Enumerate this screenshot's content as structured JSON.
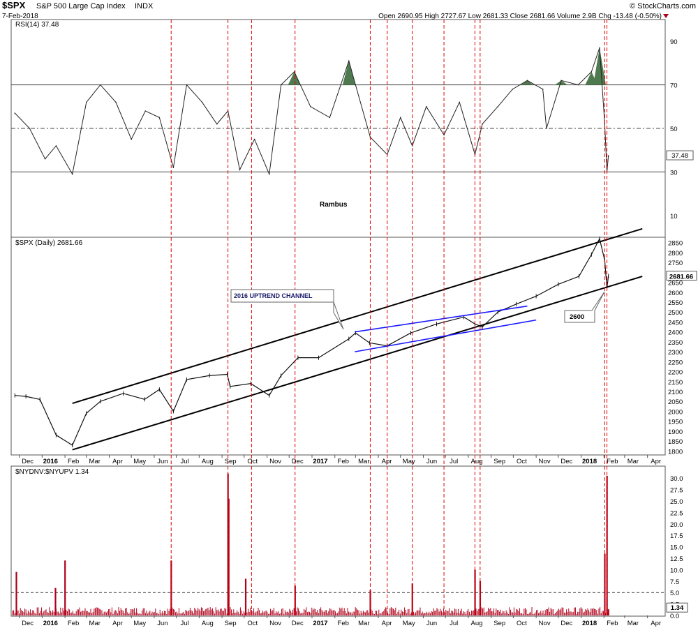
{
  "header": {
    "symbol": "$SPX",
    "name": "S&P 500 Large Cap Index",
    "exchange": "INDX",
    "date": "7-Feb-2018",
    "brand": "© StockCharts.com",
    "ohlc_text": "Open 2690.95  High 2727.67  Low 2681.33  Close 2681.66  Volume 2.9B  Chg -13.48 (-0.50%)"
  },
  "colors": {
    "rsi_fill": "#4f7a4f",
    "channel": "#000000",
    "wedge": "#1a1aff",
    "event_lines": "#e00000",
    "volume_bars": "#b0001a"
  },
  "chart_data": [
    {
      "type": "line",
      "title": "RSI(14) 37.48",
      "last_value": "37.48",
      "ylim": [
        0,
        100
      ],
      "yticks": [
        10,
        30,
        50,
        70,
        90
      ],
      "reference_lines": [
        30,
        50,
        70
      ],
      "annotation": "Rambus",
      "x": [
        "2015-11-25",
        "2015-12-15",
        "2016-01-05",
        "2016-01-20",
        "2016-02-11",
        "2016-03-01",
        "2016-03-20",
        "2016-04-10",
        "2016-05-01",
        "2016-05-20",
        "2016-06-08",
        "2016-06-27",
        "2016-07-15",
        "2016-08-05",
        "2016-08-25",
        "2016-09-09",
        "2016-09-25",
        "2016-10-15",
        "2016-11-04",
        "2016-11-20",
        "2016-12-08",
        "2016-12-30",
        "2017-01-25",
        "2017-02-20",
        "2017-03-01",
        "2017-03-21",
        "2017-04-13",
        "2017-05-01",
        "2017-05-17",
        "2017-06-05",
        "2017-06-29",
        "2017-07-20",
        "2017-08-10",
        "2017-08-20",
        "2017-09-10",
        "2017-09-30",
        "2017-10-20",
        "2017-11-10",
        "2017-11-15",
        "2017-12-05",
        "2017-12-28",
        "2018-01-15",
        "2018-01-26",
        "2018-02-02",
        "2018-02-05",
        "2018-02-07"
      ],
      "values": [
        57,
        50,
        36,
        42,
        29,
        62,
        70,
        62,
        45,
        58,
        55,
        32,
        70,
        62,
        52,
        58,
        31,
        45,
        29,
        70,
        76,
        60,
        55,
        81,
        70,
        46,
        38,
        55,
        42,
        60,
        47,
        62,
        38,
        52,
        60,
        68,
        72,
        68,
        50,
        72,
        70,
        76,
        87,
        52,
        30,
        37.48
      ],
      "overbought_fill": true,
      "xticks": [
        "Dec",
        "2016",
        "Feb",
        "Mar",
        "Apr",
        "May",
        "Jun",
        "Jul",
        "Aug",
        "Sep",
        "Oct",
        "Nov",
        "Dec",
        "2017",
        "Feb",
        "Mar",
        "Apr",
        "May",
        "Jun",
        "Jul",
        "Aug",
        "Sep",
        "Oct",
        "Nov",
        "Dec",
        "2018",
        "Feb",
        "Mar",
        "Apr"
      ]
    },
    {
      "type": "line",
      "title": "$SPX (Daily) 2681.66",
      "last_value": "2681.66",
      "ylim": [
        1780,
        2870
      ],
      "yticks": [
        1800,
        1850,
        1900,
        1950,
        2000,
        2050,
        2100,
        2150,
        2200,
        2250,
        2300,
        2350,
        2400,
        2450,
        2500,
        2550,
        2600,
        2650,
        2700,
        2750,
        2800,
        2850
      ],
      "x": [
        "2015-11-25",
        "2015-12-10",
        "2015-12-29",
        "2016-01-20",
        "2016-02-11",
        "2016-03-01",
        "2016-03-20",
        "2016-04-20",
        "2016-05-19",
        "2016-06-08",
        "2016-06-27",
        "2016-07-15",
        "2016-08-15",
        "2016-09-08",
        "2016-09-12",
        "2016-10-10",
        "2016-11-04",
        "2016-11-20",
        "2016-12-13",
        "2017-01-10",
        "2017-02-20",
        "2017-03-01",
        "2017-03-20",
        "2017-04-13",
        "2017-05-15",
        "2017-06-19",
        "2017-07-26",
        "2017-08-10",
        "2017-08-20",
        "2017-09-10",
        "2017-10-05",
        "2017-11-01",
        "2017-12-01",
        "2017-12-29",
        "2018-01-15",
        "2018-01-26",
        "2018-02-02",
        "2018-02-05",
        "2018-02-07"
      ],
      "values": [
        2080,
        2075,
        2060,
        1880,
        1829,
        1990,
        2050,
        2090,
        2060,
        2110,
        2000,
        2160,
        2180,
        2186,
        2125,
        2140,
        2080,
        2180,
        2270,
        2270,
        2365,
        2395,
        2345,
        2330,
        2395,
        2440,
        2475,
        2440,
        2425,
        2500,
        2540,
        2580,
        2640,
        2680,
        2790,
        2870,
        2760,
        2620,
        2681.66
      ],
      "annotations": [
        {
          "text": "2016 UPTREND CHANNEL"
        },
        {
          "text": "2600"
        }
      ],
      "channel_upper": {
        "from": {
          "x": "2016-02-11",
          "y": 2040
        },
        "to": {
          "x": "2018-03-25",
          "y": 2920
        }
      },
      "channel_lower": {
        "from": {
          "x": "2016-02-11",
          "y": 1806
        },
        "to": {
          "x": "2018-03-25",
          "y": 2680
        }
      },
      "wedge_upper": {
        "from": {
          "x": "2017-02-28",
          "y": 2400
        },
        "to": {
          "x": "2017-10-20",
          "y": 2530
        }
      },
      "wedge_lower": {
        "from": {
          "x": "2017-02-28",
          "y": 2300
        },
        "to": {
          "x": "2017-11-01",
          "y": 2460
        }
      },
      "xticks": [
        "Dec",
        "2016",
        "Feb",
        "Mar",
        "Apr",
        "May",
        "Jun",
        "Jul",
        "Aug",
        "Sep",
        "Oct",
        "Nov",
        "Dec",
        "2017",
        "Feb",
        "Mar",
        "Apr",
        "May",
        "Jun",
        "Jul",
        "Aug",
        "Sep",
        "Oct",
        "Nov",
        "Dec",
        "2018",
        "Feb",
        "Mar",
        "Apr"
      ]
    },
    {
      "type": "bar",
      "title": "$NYDNV:$NYUPV 1.34",
      "last_value": "1.34",
      "ylim": [
        0,
        32
      ],
      "yticks": [
        0,
        2.5,
        5.0,
        7.5,
        10.0,
        12.5,
        15.0,
        17.5,
        20.0,
        22.5,
        25.0,
        27.5,
        30.0
      ],
      "reference_lines": [
        5.0
      ],
      "spikes": [
        {
          "x": "2015-11-27",
          "value": 9.5
        },
        {
          "x": "2016-01-19",
          "value": 6.0
        },
        {
          "x": "2016-02-01",
          "value": 12.0
        },
        {
          "x": "2016-06-24",
          "value": 12.0
        },
        {
          "x": "2016-09-09",
          "value": 31.0
        },
        {
          "x": "2016-09-10",
          "value": 25.5
        },
        {
          "x": "2016-10-03",
          "value": 8.0
        },
        {
          "x": "2016-12-09",
          "value": 6.5
        },
        {
          "x": "2017-03-21",
          "value": 5.5
        },
        {
          "x": "2017-05-17",
          "value": 7.0
        },
        {
          "x": "2017-08-10",
          "value": 10.0
        },
        {
          "x": "2017-08-17",
          "value": 7.5
        },
        {
          "x": "2018-02-02",
          "value": 13.5
        },
        {
          "x": "2018-02-05",
          "value": 30.5
        },
        {
          "x": "2018-02-07",
          "value": 1.34
        }
      ],
      "xticks": [
        "Dec",
        "2016",
        "Feb",
        "Mar",
        "Apr",
        "May",
        "Jun",
        "Jul",
        "Aug",
        "Sep",
        "Oct",
        "Nov",
        "Dec",
        "2017",
        "Feb",
        "Mar",
        "Apr",
        "May",
        "Jun",
        "Jul",
        "Aug",
        "Sep",
        "Oct",
        "Nov",
        "Dec",
        "2018",
        "Feb",
        "Mar",
        "Apr"
      ]
    }
  ],
  "event_lines": [
    "2016-06-24",
    "2016-09-09",
    "2016-10-11",
    "2016-12-09",
    "2017-03-21",
    "2017-04-13",
    "2017-05-17",
    "2017-06-29",
    "2017-08-10",
    "2017-08-17",
    "2018-02-02",
    "2018-02-05"
  ]
}
